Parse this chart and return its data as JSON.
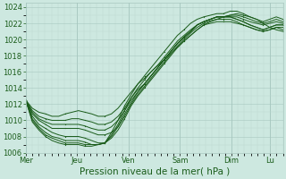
{
  "background_color": "#cde8e0",
  "plot_bg_color": "#cde8e0",
  "grid_color_major": "#a8c8c0",
  "grid_color_minor": "#bcd8d0",
  "line_color": "#1a5c1a",
  "xlabel": "Pression niveau de la mer( hPa )",
  "xlabel_fontsize": 7.5,
  "tick_color": "#1a5c1a",
  "tick_fontsize": 6,
  "ylim": [
    1006.0,
    1024.5
  ],
  "yticks": [
    1007,
    1009,
    1011,
    1013,
    1015,
    1017,
    1019,
    1021,
    1023
  ],
  "xtick_labels": [
    "Mer",
    "Jeu",
    "Ven",
    "Sam",
    "Dim",
    "Lu"
  ],
  "xtick_positions": [
    0,
    48,
    96,
    144,
    192,
    228
  ],
  "xlim": [
    0,
    240
  ],
  "series": [
    [
      1012.5,
      1011.5,
      1011.0,
      1010.8,
      1010.5,
      1010.5,
      1010.8,
      1011.0,
      1011.2,
      1011.0,
      1010.8,
      1010.5,
      1010.5,
      1010.8,
      1011.5,
      1012.5,
      1013.5,
      1014.5,
      1015.2,
      1016.0,
      1016.8,
      1017.5,
      1018.3,
      1019.0,
      1019.8,
      1020.5,
      1021.2,
      1021.8,
      1022.2,
      1022.5,
      1022.8,
      1023.0,
      1023.2,
      1023.0,
      1022.8,
      1022.5,
      1022.0,
      1021.5,
      1021.2,
      1021.0
    ],
    [
      1012.5,
      1011.2,
      1010.5,
      1010.2,
      1010.0,
      1010.0,
      1010.0,
      1010.2,
      1010.2,
      1010.0,
      1009.8,
      1009.5,
      1009.5,
      1009.8,
      1010.5,
      1011.5,
      1012.8,
      1013.8,
      1014.5,
      1015.5,
      1016.5,
      1017.5,
      1018.5,
      1019.5,
      1020.3,
      1021.0,
      1021.8,
      1022.2,
      1022.5,
      1022.8,
      1022.8,
      1022.8,
      1022.5,
      1022.2,
      1021.8,
      1021.5,
      1021.2,
      1021.5,
      1021.8,
      1021.8
    ],
    [
      1012.5,
      1011.0,
      1010.2,
      1009.8,
      1009.5,
      1009.5,
      1009.5,
      1009.5,
      1009.5,
      1009.3,
      1009.0,
      1008.8,
      1008.8,
      1009.2,
      1010.0,
      1011.2,
      1012.5,
      1013.5,
      1014.5,
      1015.5,
      1016.5,
      1017.5,
      1018.5,
      1019.5,
      1020.3,
      1021.0,
      1021.8,
      1022.2,
      1022.5,
      1022.8,
      1022.8,
      1022.8,
      1022.5,
      1022.2,
      1021.8,
      1021.5,
      1021.2,
      1021.5,
      1021.8,
      1021.8
    ],
    [
      1012.5,
      1010.8,
      1010.0,
      1009.5,
      1009.0,
      1009.0,
      1009.0,
      1009.0,
      1009.0,
      1008.8,
      1008.5,
      1008.2,
      1008.2,
      1008.5,
      1009.2,
      1010.5,
      1012.0,
      1013.2,
      1014.2,
      1015.2,
      1016.2,
      1017.2,
      1018.2,
      1019.2,
      1020.0,
      1020.8,
      1021.5,
      1022.0,
      1022.3,
      1022.5,
      1022.5,
      1022.5,
      1022.2,
      1021.8,
      1021.5,
      1021.2,
      1021.0,
      1021.2,
      1021.5,
      1021.5
    ],
    [
      1012.5,
      1010.5,
      1009.5,
      1009.0,
      1008.5,
      1008.2,
      1008.0,
      1008.0,
      1008.0,
      1007.8,
      1007.5,
      1007.2,
      1007.2,
      1007.8,
      1008.8,
      1010.2,
      1011.8,
      1013.0,
      1014.0,
      1015.0,
      1016.0,
      1017.0,
      1018.0,
      1019.0,
      1019.8,
      1020.5,
      1021.2,
      1021.8,
      1022.0,
      1022.2,
      1022.2,
      1022.2,
      1022.0,
      1021.8,
      1021.5,
      1021.2,
      1021.0,
      1021.2,
      1021.5,
      1021.2
    ],
    [
      1012.5,
      1010.2,
      1009.2,
      1008.5,
      1008.0,
      1007.8,
      1007.5,
      1007.5,
      1007.5,
      1007.3,
      1007.0,
      1007.0,
      1007.2,
      1008.0,
      1009.2,
      1010.8,
      1012.2,
      1013.5,
      1014.5,
      1015.5,
      1016.5,
      1017.5,
      1018.5,
      1019.5,
      1020.2,
      1021.0,
      1021.8,
      1022.2,
      1022.5,
      1022.8,
      1022.8,
      1022.8,
      1022.8,
      1022.5,
      1022.2,
      1022.0,
      1021.8,
      1022.0,
      1022.2,
      1022.0
    ],
    [
      1012.5,
      1010.0,
      1009.0,
      1008.2,
      1007.8,
      1007.5,
      1007.2,
      1007.2,
      1007.2,
      1007.0,
      1007.0,
      1007.0,
      1007.2,
      1008.2,
      1009.5,
      1011.2,
      1012.8,
      1014.0,
      1015.0,
      1016.0,
      1016.8,
      1017.8,
      1018.8,
      1019.8,
      1020.5,
      1021.2,
      1021.8,
      1022.2,
      1022.5,
      1022.8,
      1022.8,
      1023.0,
      1023.0,
      1022.8,
      1022.5,
      1022.2,
      1022.0,
      1022.2,
      1022.5,
      1022.2
    ],
    [
      1012.5,
      1009.8,
      1008.8,
      1008.0,
      1007.5,
      1007.2,
      1007.0,
      1007.0,
      1007.0,
      1006.8,
      1006.8,
      1007.0,
      1007.2,
      1008.5,
      1010.0,
      1011.8,
      1013.2,
      1014.5,
      1015.5,
      1016.5,
      1017.5,
      1018.5,
      1019.5,
      1020.5,
      1021.2,
      1022.0,
      1022.5,
      1022.8,
      1023.0,
      1023.2,
      1023.2,
      1023.5,
      1023.5,
      1023.2,
      1022.8,
      1022.5,
      1022.2,
      1022.5,
      1022.8,
      1022.5
    ]
  ],
  "n_points": 40,
  "lw": 0.7
}
